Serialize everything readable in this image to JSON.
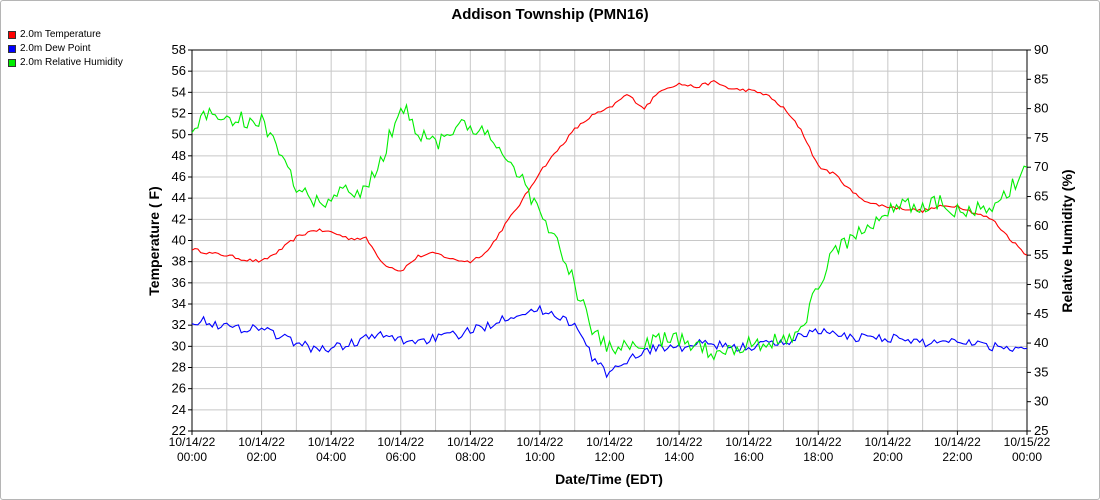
{
  "chart_data": {
    "type": "line",
    "title": "Addison Township (PMN16)",
    "xlabel": "Date/Time (EDT)",
    "ylabel_left": "Temperature ( F)",
    "ylabel_right": "Relative Humidity (%)",
    "ylim_left": [
      22,
      58
    ],
    "ylim_right": [
      25,
      90
    ],
    "xlim_hours": [
      0,
      24
    ],
    "grid": true,
    "legend_position": "top-left",
    "x_tick_labels": [
      {
        "date": "10/14/22",
        "time": "00:00"
      },
      {
        "date": "10/14/22",
        "time": "02:00"
      },
      {
        "date": "10/14/22",
        "time": "04:00"
      },
      {
        "date": "10/14/22",
        "time": "06:00"
      },
      {
        "date": "10/14/22",
        "time": "08:00"
      },
      {
        "date": "10/14/22",
        "time": "10:00"
      },
      {
        "date": "10/14/22",
        "time": "12:00"
      },
      {
        "date": "10/14/22",
        "time": "14:00"
      },
      {
        "date": "10/14/22",
        "time": "16:00"
      },
      {
        "date": "10/14/22",
        "time": "18:00"
      },
      {
        "date": "10/14/22",
        "time": "20:00"
      },
      {
        "date": "10/14/22",
        "time": "22:00"
      },
      {
        "date": "10/15/22",
        "time": "00:00"
      }
    ],
    "y_left_ticks": [
      22,
      24,
      26,
      28,
      30,
      32,
      34,
      36,
      38,
      40,
      42,
      44,
      46,
      48,
      50,
      52,
      54,
      56,
      58
    ],
    "y_right_ticks": [
      25,
      30,
      35,
      40,
      45,
      50,
      55,
      60,
      65,
      70,
      75,
      80,
      85,
      90
    ],
    "series": [
      {
        "name": "2.0m Temperature",
        "color": "#ff0000",
        "axis": "left",
        "x": [
          0,
          0.5,
          1,
          1.5,
          2,
          2.5,
          3,
          3.5,
          4,
          4.5,
          5,
          5.5,
          6,
          6.5,
          7,
          7.5,
          8,
          8.5,
          9,
          9.5,
          10,
          10.5,
          11,
          11.5,
          12,
          12.5,
          13,
          13.5,
          14,
          14.5,
          15,
          15.5,
          16,
          16.5,
          17,
          17.5,
          18,
          18.5,
          19,
          19.5,
          20,
          20.5,
          21,
          21.5,
          22,
          22.5,
          23,
          23.5,
          24
        ],
        "y": [
          39.2,
          38.8,
          38.6,
          38.2,
          38,
          39,
          40.3,
          41,
          40.8,
          40.2,
          40.2,
          37.8,
          37.1,
          38.5,
          38.8,
          38.2,
          38,
          39,
          41.5,
          43.8,
          46.5,
          48.5,
          50.5,
          51.8,
          52.5,
          53.8,
          52.5,
          54.3,
          54.8,
          54.5,
          55,
          54.3,
          54.2,
          53.8,
          52.5,
          50.5,
          47,
          46.2,
          44.5,
          43.5,
          43.2,
          43,
          42.8,
          43.2,
          43.3,
          42.6,
          42,
          40.2,
          38.6
        ]
      },
      {
        "name": "2.0m Dew Point",
        "color": "#0000ff",
        "axis": "left",
        "x": [
          0,
          0.5,
          1,
          1.5,
          2,
          2.5,
          3,
          3.5,
          4,
          4.5,
          5,
          5.5,
          6,
          6.5,
          7,
          7.5,
          8,
          8.5,
          9,
          9.5,
          10,
          10.5,
          11,
          11.5,
          12,
          12.5,
          13,
          13.5,
          14,
          14.5,
          15,
          15.5,
          16,
          16.5,
          17,
          17.5,
          18,
          18.5,
          19,
          19.5,
          20,
          20.5,
          21,
          21.5,
          22,
          22.5,
          23,
          23.5,
          24
        ],
        "y": [
          32.5,
          32.3,
          31.8,
          31.7,
          31.8,
          31,
          30.3,
          29.8,
          29.8,
          30.2,
          30.8,
          31,
          30.6,
          30.5,
          30.8,
          31,
          31.4,
          32,
          32.8,
          33.2,
          33.4,
          33,
          32,
          29,
          27.2,
          28.8,
          29.5,
          30,
          29.8,
          30.2,
          30.2,
          29.8,
          30,
          30.2,
          30.3,
          31,
          31.6,
          31,
          30.8,
          31,
          30.8,
          30.6,
          30.3,
          30.5,
          30.6,
          30.4,
          30,
          30,
          29.8
        ]
      },
      {
        "name": "2.0m Relative Humidity",
        "color": "#00ee00",
        "axis": "right",
        "x": [
          0,
          0.5,
          1,
          1.5,
          2,
          2.5,
          3,
          3.5,
          4,
          4.5,
          5,
          5.5,
          6,
          6.5,
          7,
          7.5,
          8,
          8.5,
          9,
          9.5,
          10,
          10.5,
          11,
          11.5,
          12,
          12.5,
          13,
          13.5,
          14,
          14.5,
          15,
          15.5,
          16,
          16.5,
          17,
          17.5,
          18,
          18.5,
          19,
          19.5,
          20,
          20.5,
          21,
          21.5,
          22,
          22.5,
          23,
          23.5,
          24
        ],
        "y": [
          77,
          79,
          78.5,
          78,
          78,
          72,
          67,
          64,
          64.5,
          66,
          66,
          72,
          81,
          76,
          74,
          76.5,
          77,
          75,
          72,
          68,
          62,
          57,
          50,
          42,
          39,
          39.5,
          40,
          40.5,
          40.5,
          39.5,
          38.5,
          39,
          40,
          40,
          40.5,
          42,
          50,
          56,
          58,
          60,
          63,
          63.5,
          63,
          64,
          62.5,
          63,
          62,
          66,
          70
        ]
      }
    ]
  }
}
